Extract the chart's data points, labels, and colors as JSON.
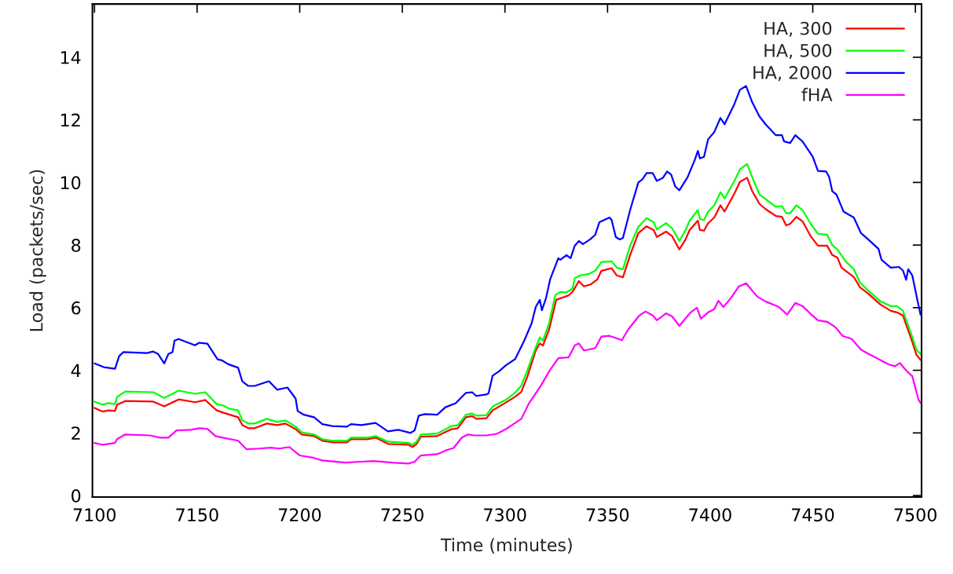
{
  "chart_data": {
    "type": "line",
    "xlabel": "Time (minutes)",
    "ylabel": "Load (packets/sec)",
    "xlim": [
      7099,
      7503
    ],
    "ylim": [
      -0.05,
      15.7
    ],
    "xticks": [
      7100,
      7150,
      7200,
      7250,
      7300,
      7350,
      7400,
      7450,
      7500
    ],
    "yticks": [
      0,
      2,
      4,
      6,
      8,
      10,
      12,
      14
    ],
    "grid": false,
    "legend": "top right",
    "line_style": "solid",
    "marker": "none",
    "series": [
      {
        "name": "HA, 300",
        "color": "#ff0000",
        "x": [
          7100,
          7104,
          7107,
          7110,
          7111,
          7115,
          7128.6,
          7134,
          7141,
          7149,
          7154,
          7159.5,
          7162.5,
          7170,
          7172,
          7175,
          7178,
          7184,
          7189,
          7193,
          7198,
          7201,
          7207,
          7211,
          7216,
          7223,
          7225,
          7233,
          7237,
          7243,
          7253,
          7255,
          7257,
          7259,
          7267,
          7274,
          7277,
          7281,
          7284,
          7286,
          7291,
          7294,
          7300.5,
          7305,
          7308,
          7311,
          7315,
          7317,
          7318.5,
          7321.5,
          7325,
          7327,
          7331,
          7333,
          7336,
          7338.5,
          7342,
          7345,
          7347,
          7352,
          7354.5,
          7357.5,
          7361,
          7365,
          7369,
          7372.5,
          7374,
          7378.5,
          7381.5,
          7385,
          7388,
          7390,
          7394,
          7395,
          7397,
          7399,
          7402,
          7405,
          7407,
          7412,
          7414.5,
          7418,
          7420.5,
          7424,
          7427,
          7432,
          7435,
          7437,
          7439,
          7442,
          7445,
          7449,
          7452.5,
          7457,
          7459.5,
          7462,
          7464,
          7470,
          7473,
          7477,
          7483,
          7488,
          7491,
          7494,
          7495,
          7498,
          7500.5,
          7502.5
        ],
        "values": [
          2.8,
          2.68,
          2.72,
          2.7,
          2.9,
          3.02,
          3.0,
          2.85,
          3.07,
          2.98,
          3.05,
          2.72,
          2.65,
          2.5,
          2.25,
          2.15,
          2.15,
          2.3,
          2.25,
          2.3,
          2.12,
          1.95,
          1.9,
          1.75,
          1.7,
          1.7,
          1.8,
          1.8,
          1.85,
          1.65,
          1.62,
          1.55,
          1.65,
          1.88,
          1.9,
          2.12,
          2.15,
          2.5,
          2.54,
          2.45,
          2.47,
          2.72,
          2.97,
          3.16,
          3.31,
          3.81,
          4.63,
          4.86,
          4.79,
          5.3,
          6.25,
          6.3,
          6.39,
          6.51,
          6.85,
          6.68,
          6.75,
          6.9,
          7.18,
          7.26,
          7.03,
          6.97,
          7.68,
          8.38,
          8.6,
          8.48,
          8.26,
          8.43,
          8.28,
          7.86,
          8.18,
          8.48,
          8.78,
          8.48,
          8.46,
          8.7,
          8.88,
          9.27,
          9.07,
          9.67,
          10.02,
          10.15,
          9.72,
          9.32,
          9.15,
          8.93,
          8.9,
          8.63,
          8.68,
          8.9,
          8.76,
          8.28,
          7.98,
          7.98,
          7.68,
          7.6,
          7.28,
          6.98,
          6.65,
          6.45,
          6.1,
          5.9,
          5.85,
          5.75,
          5.55,
          5.0,
          4.5,
          4.33
        ]
      },
      {
        "name": "HA, 500",
        "color": "#00ff00",
        "x": [
          7100,
          7104,
          7107,
          7110,
          7111,
          7115,
          7128.6,
          7134,
          7141,
          7149,
          7154,
          7159.5,
          7162.5,
          7165.5,
          7170,
          7172,
          7175,
          7178,
          7184,
          7189,
          7193,
          7198,
          7201,
          7207,
          7211,
          7216,
          7223,
          7225,
          7233,
          7237,
          7243,
          7253,
          7255,
          7257,
          7259,
          7267,
          7274,
          7277,
          7281,
          7284,
          7286,
          7291,
          7294,
          7300.5,
          7305,
          7308,
          7311,
          7315,
          7317,
          7318.5,
          7321.5,
          7324.5,
          7327,
          7330,
          7333,
          7334,
          7336.5,
          7341,
          7344,
          7347,
          7352,
          7354.5,
          7357.5,
          7361,
          7365,
          7369,
          7372.5,
          7374,
          7378.5,
          7381.5,
          7385,
          7388,
          7390,
          7394,
          7395,
          7397,
          7399,
          7402,
          7405,
          7407,
          7412,
          7414.5,
          7418,
          7420.5,
          7424,
          7427,
          7432,
          7435,
          7437,
          7439,
          7442,
          7445,
          7449,
          7452.5,
          7457,
          7459.5,
          7462,
          7466,
          7470,
          7473,
          7477,
          7483,
          7488,
          7491,
          7494,
          7495,
          7498,
          7500.5,
          7502.5
        ],
        "values": [
          3.0,
          2.9,
          2.95,
          2.92,
          3.15,
          3.32,
          3.3,
          3.12,
          3.35,
          3.25,
          3.3,
          2.92,
          2.88,
          2.78,
          2.72,
          2.4,
          2.3,
          2.3,
          2.45,
          2.35,
          2.4,
          2.2,
          2.02,
          1.95,
          1.8,
          1.75,
          1.75,
          1.85,
          1.85,
          1.9,
          1.72,
          1.68,
          1.62,
          1.72,
          1.95,
          1.98,
          2.22,
          2.25,
          2.58,
          2.62,
          2.55,
          2.57,
          2.84,
          3.06,
          3.29,
          3.51,
          4.01,
          4.73,
          5.05,
          4.95,
          5.5,
          6.4,
          6.5,
          6.49,
          6.61,
          6.94,
          7.03,
          7.08,
          7.18,
          7.46,
          7.48,
          7.28,
          7.23,
          7.98,
          8.58,
          8.86,
          8.73,
          8.5,
          8.7,
          8.53,
          8.13,
          8.48,
          8.78,
          9.12,
          8.83,
          8.8,
          9.07,
          9.27,
          9.69,
          9.49,
          10.07,
          10.42,
          10.59,
          10.17,
          9.62,
          9.47,
          9.22,
          9.25,
          9.02,
          9.02,
          9.27,
          9.12,
          8.68,
          8.36,
          8.33,
          8.0,
          7.86,
          7.48,
          7.23,
          6.8,
          6.55,
          6.2,
          6.05,
          6.05,
          5.9,
          5.7,
          5.15,
          4.66,
          4.52
        ]
      },
      {
        "name": "HA, 2000",
        "color": "#0000ff",
        "x": [
          7100,
          7104.5,
          7110,
          7112,
          7114,
          7125.6,
          7128.6,
          7131,
          7134,
          7136,
          7138,
          7139,
          7141,
          7149,
          7151,
          7155,
          7160,
          7162,
          7165,
          7170,
          7172,
          7175,
          7178,
          7185,
          7189,
          7194,
          7198,
          7199,
          7202,
          7207,
          7211,
          7216,
          7223,
          7225,
          7230,
          7237,
          7243,
          7248,
          7254,
          7256,
          7258,
          7261,
          7267,
          7271,
          7276,
          7281,
          7284,
          7286,
          7291,
          7292,
          7294,
          7297,
          7300.5,
          7305,
          7306.5,
          7309.5,
          7313,
          7315,
          7317,
          7318,
          7320,
          7322,
          7326,
          7327,
          7330,
          7332,
          7334,
          7336,
          7338,
          7341.5,
          7344,
          7346,
          7351,
          7352,
          7354,
          7356,
          7357.5,
          7361,
          7365,
          7367,
          7369,
          7372,
          7374,
          7377,
          7379,
          7381,
          7383,
          7385,
          7389,
          7392.5,
          7394,
          7395,
          7397,
          7399,
          7402,
          7405,
          7407,
          7411.5,
          7414.5,
          7417.5,
          7420.5,
          7424,
          7427,
          7432,
          7435,
          7436,
          7439,
          7441.5,
          7445,
          7450,
          7452.5,
          7456.5,
          7458,
          7459.5,
          7461.5,
          7465,
          7470,
          7473.5,
          7477,
          7482,
          7483.5,
          7488,
          7492,
          7494,
          7495.5,
          7496.5,
          7498.5,
          7500.5,
          7502.5
        ],
        "values": [
          4.22,
          4.1,
          4.05,
          4.45,
          4.58,
          4.55,
          4.6,
          4.52,
          4.22,
          4.52,
          4.58,
          4.95,
          5.0,
          4.8,
          4.88,
          4.85,
          4.35,
          4.32,
          4.2,
          4.08,
          3.65,
          3.5,
          3.5,
          3.65,
          3.38,
          3.45,
          3.1,
          2.7,
          2.58,
          2.5,
          2.28,
          2.22,
          2.2,
          2.28,
          2.25,
          2.32,
          2.05,
          2.1,
          2.0,
          2.08,
          2.55,
          2.6,
          2.58,
          2.82,
          2.95,
          3.28,
          3.3,
          3.18,
          3.23,
          3.26,
          3.83,
          3.96,
          4.16,
          4.36,
          4.56,
          4.96,
          5.5,
          6.02,
          6.25,
          5.92,
          6.3,
          6.9,
          7.58,
          7.53,
          7.68,
          7.58,
          7.98,
          8.13,
          8.03,
          8.18,
          8.33,
          8.73,
          8.88,
          8.8,
          8.26,
          8.18,
          8.23,
          9.12,
          10.0,
          10.1,
          10.3,
          10.3,
          10.05,
          10.15,
          10.35,
          10.25,
          9.87,
          9.75,
          10.17,
          10.72,
          11.01,
          10.77,
          10.82,
          11.38,
          11.61,
          12.06,
          11.86,
          12.46,
          12.96,
          13.08,
          12.56,
          12.11,
          11.86,
          11.51,
          11.51,
          11.31,
          11.26,
          11.51,
          11.31,
          10.82,
          10.37,
          10.35,
          10.17,
          9.72,
          9.62,
          9.07,
          8.88,
          8.38,
          8.18,
          7.88,
          7.53,
          7.28,
          7.3,
          7.18,
          6.89,
          7.23,
          7.03,
          6.39,
          5.78
        ]
      },
      {
        "name": "fHA",
        "color": "#ff00ff",
        "x": [
          7100,
          7104,
          7110,
          7111,
          7115,
          7127,
          7132,
          7136,
          7140,
          7147,
          7151,
          7155,
          7159,
          7162.5,
          7170,
          7174,
          7180,
          7186,
          7190,
          7195,
          7200,
          7207,
          7211,
          7222,
          7230,
          7236,
          7245,
          7253,
          7256,
          7259,
          7267,
          7271.5,
          7275,
          7279,
          7282,
          7285,
          7291,
          7296,
          7300.5,
          7305,
          7308,
          7311.5,
          7317.5,
          7322,
          7326,
          7331,
          7334,
          7336,
          7338.5,
          7344,
          7347,
          7351,
          7357,
          7360,
          7365.5,
          7368.5,
          7372,
          7374,
          7378.5,
          7381.5,
          7385,
          7387.5,
          7390.5,
          7393.5,
          7395.5,
          7399,
          7402,
          7404,
          7406.5,
          7410,
          7414,
          7417.5,
          7423,
          7427,
          7433.5,
          7437.5,
          7441.5,
          7445,
          7449,
          7452.5,
          7457,
          7461,
          7464.5,
          7469,
          7473.5,
          7477,
          7482,
          7487,
          7490,
          7492.5,
          7496,
          7498.5,
          7501.5,
          7502.5
        ],
        "values": [
          1.68,
          1.62,
          1.68,
          1.8,
          1.95,
          1.92,
          1.85,
          1.85,
          2.08,
          2.1,
          2.15,
          2.13,
          1.9,
          1.85,
          1.75,
          1.48,
          1.5,
          1.53,
          1.5,
          1.55,
          1.28,
          1.2,
          1.12,
          1.05,
          1.08,
          1.1,
          1.05,
          1.02,
          1.08,
          1.28,
          1.32,
          1.45,
          1.52,
          1.85,
          1.95,
          1.92,
          1.92,
          1.97,
          2.12,
          2.32,
          2.45,
          2.92,
          3.51,
          4.01,
          4.39,
          4.41,
          4.79,
          4.86,
          4.63,
          4.71,
          5.08,
          5.1,
          4.96,
          5.3,
          5.75,
          5.88,
          5.75,
          5.6,
          5.82,
          5.72,
          5.42,
          5.62,
          5.85,
          6.0,
          5.65,
          5.85,
          5.95,
          6.22,
          6.02,
          6.3,
          6.68,
          6.78,
          6.35,
          6.2,
          6.02,
          5.78,
          6.15,
          6.05,
          5.8,
          5.6,
          5.55,
          5.38,
          5.1,
          5.0,
          4.66,
          4.53,
          4.36,
          4.19,
          4.13,
          4.23,
          3.96,
          3.81,
          3.06,
          2.96
        ]
      }
    ]
  }
}
